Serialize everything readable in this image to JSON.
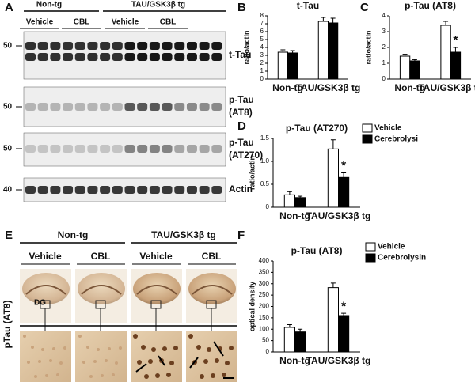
{
  "panel_labels": [
    "A",
    "B",
    "C",
    "D",
    "E",
    "F"
  ],
  "blot": {
    "groups": [
      "Non-tg",
      "TAU/GSK3β tg"
    ],
    "treatments": [
      "Vehicle",
      "CBL",
      "Vehicle",
      "CBL"
    ],
    "mw": [
      "50",
      "50",
      "50",
      "40"
    ],
    "bands": [
      [
        "t-Tau"
      ],
      [
        "p-Tau",
        "(AT8)"
      ],
      [
        "p-Tau",
        "(AT270)"
      ],
      [
        "Actin"
      ]
    ]
  },
  "histology": {
    "groups": [
      "Non-tg",
      "TAU/GSK3β tg"
    ],
    "treatments": [
      "Vehicle",
      "CBL",
      "Vehicle",
      "CBL"
    ],
    "region": "DG",
    "ylabel": "pTau (AT8)"
  },
  "chart_data": [
    {
      "type": "bar",
      "title": "t-Tau",
      "ylabel": "ratio/actin",
      "categories": [
        "Non-tg",
        "TAU/GSK3β tg"
      ],
      "series": [
        {
          "color": "#ffffff",
          "values": [
            3.4,
            7.3
          ],
          "errors": [
            0.3,
            0.5
          ]
        },
        {
          "color": "#000000",
          "values": [
            3.3,
            7.1
          ],
          "errors": [
            0.3,
            0.6
          ]
        }
      ],
      "ylim": [
        0,
        8
      ],
      "yticks": [
        0,
        1,
        2,
        3,
        4,
        5,
        6,
        7,
        8
      ]
    },
    {
      "type": "bar",
      "title": "p-Tau (AT8)",
      "ylabel": "ratio/actin",
      "categories": [
        "Non-tg",
        "TAU/GSK3β tg"
      ],
      "series": [
        {
          "color": "#ffffff",
          "values": [
            1.45,
            3.4
          ],
          "errors": [
            0.12,
            0.25
          ]
        },
        {
          "color": "#000000",
          "values": [
            1.15,
            1.7
          ],
          "errors": [
            0.08,
            0.3
          ]
        }
      ],
      "ylim": [
        0,
        4
      ],
      "yticks": [
        0,
        1,
        2,
        3,
        4
      ],
      "annotation": "*"
    },
    {
      "type": "bar",
      "title": "p-Tau (AT270)",
      "ylabel": "ratio/actin",
      "categories": [
        "Non-tg",
        "TAU/GSK3β tg"
      ],
      "series": [
        {
          "name": "Vehicle",
          "color": "#ffffff",
          "values": [
            0.27,
            1.27
          ],
          "errors": [
            0.07,
            0.2
          ]
        },
        {
          "name": "Cerebrolysi",
          "color": "#000000",
          "values": [
            0.21,
            0.65
          ],
          "errors": [
            0.03,
            0.1
          ]
        }
      ],
      "ylim": [
        0,
        1.5
      ],
      "yticks": [
        0,
        0.5,
        {
          "value": 1,
          "label": "1.0"
        },
        1.5
      ],
      "annotation": "*"
    },
    {
      "type": "bar",
      "title": "p-Tau (AT8)",
      "ylabel": "optical density",
      "categories": [
        "Non-tg",
        "TAU/GSK3β tg"
      ],
      "series": [
        {
          "name": "Vehicle",
          "color": "#ffffff",
          "values": [
            108,
            283
          ],
          "errors": [
            12,
            20
          ]
        },
        {
          "name": "Cerebrolysin",
          "color": "#000000",
          "values": [
            88,
            160
          ],
          "errors": [
            12,
            10
          ]
        }
      ],
      "ylim": [
        0,
        400
      ],
      "yticks": [
        0,
        50,
        100,
        150,
        200,
        250,
        300,
        350,
        400
      ],
      "annotation": "*"
    }
  ]
}
